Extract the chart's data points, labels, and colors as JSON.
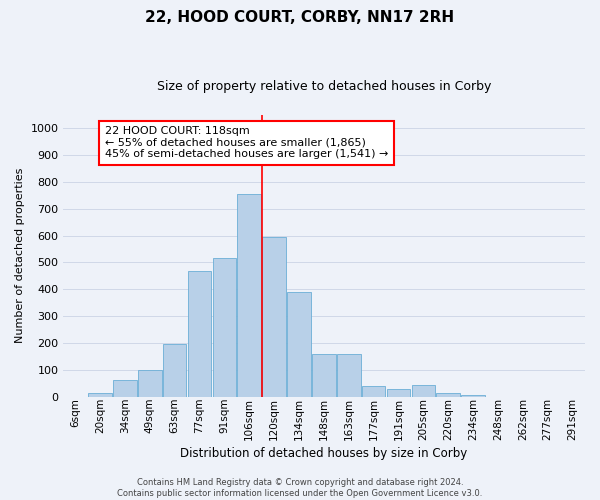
{
  "title": "22, HOOD COURT, CORBY, NN17 2RH",
  "subtitle": "Size of property relative to detached houses in Corby",
  "xlabel": "Distribution of detached houses by size in Corby",
  "ylabel": "Number of detached properties",
  "bar_labels": [
    "6sqm",
    "20sqm",
    "34sqm",
    "49sqm",
    "63sqm",
    "77sqm",
    "91sqm",
    "106sqm",
    "120sqm",
    "134sqm",
    "148sqm",
    "163sqm",
    "177sqm",
    "191sqm",
    "205sqm",
    "220sqm",
    "234sqm",
    "248sqm",
    "262sqm",
    "277sqm",
    "291sqm"
  ],
  "bar_values": [
    0,
    12,
    62,
    100,
    197,
    470,
    515,
    755,
    595,
    390,
    160,
    160,
    40,
    27,
    42,
    12,
    7,
    0,
    0,
    0,
    0
  ],
  "bar_color": "#b8d0e8",
  "bar_edge_color": "#6baed6",
  "vline_x": 7.5,
  "vline_color": "red",
  "annotation_text": "22 HOOD COURT: 118sqm\n← 55% of detached houses are smaller (1,865)\n45% of semi-detached houses are larger (1,541) →",
  "annotation_box_color": "white",
  "annotation_border_color": "red",
  "ylim": [
    0,
    1050
  ],
  "yticks": [
    0,
    100,
    200,
    300,
    400,
    500,
    600,
    700,
    800,
    900,
    1000
  ],
  "footer_line1": "Contains HM Land Registry data © Crown copyright and database right 2024.",
  "footer_line2": "Contains public sector information licensed under the Open Government Licence v3.0.",
  "bg_color": "#eef2f9",
  "plot_bg_color": "#eef2f9",
  "grid_color": "#d0d8e8",
  "title_fontsize": 11,
  "subtitle_fontsize": 9
}
